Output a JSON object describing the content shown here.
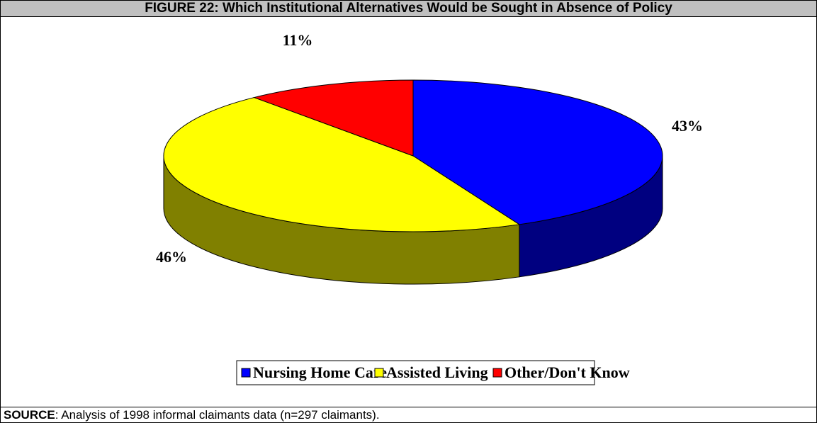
{
  "figure": {
    "title": "FIGURE 22: Which Institutional Alternatives Would be Sought in Absence of Policy",
    "source_label": "SOURCE",
    "source_text": ":  Analysis of 1998 informal claimants data (n=297 claimants)."
  },
  "chart_data": {
    "type": "pie",
    "style": "3d",
    "categories": [
      "Nursing Home Care",
      "Assisted Living",
      "Other/Don't Know"
    ],
    "values": [
      43,
      46,
      11
    ],
    "data_labels": [
      "43%",
      "46%",
      "11%"
    ],
    "legend_position": "bottom",
    "colors": {
      "top": [
        "#0000ff",
        "#ffff00",
        "#ff0000"
      ],
      "side": [
        "#000080",
        "#808000",
        "#800000"
      ]
    }
  }
}
